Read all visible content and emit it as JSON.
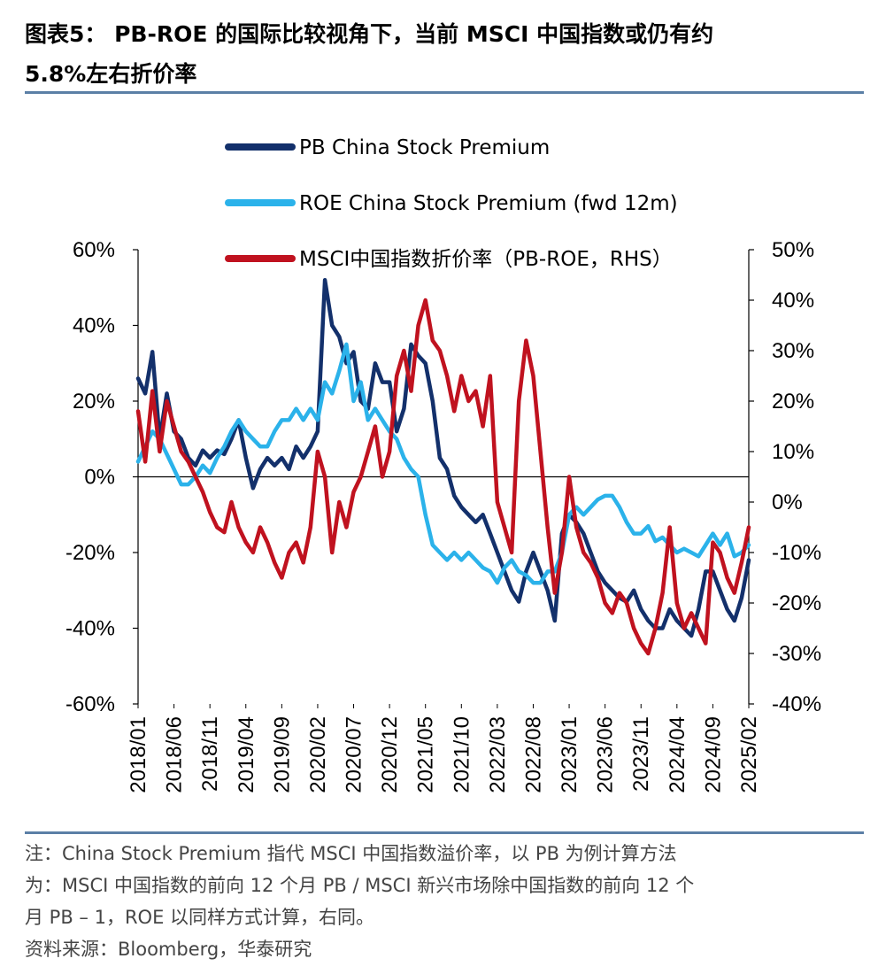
{
  "title": {
    "line1": "图表5： PB-ROE 的国际比较视角下，当前 MSCI 中国指数或仍有约",
    "line2": "5.8%左右折价率"
  },
  "notes": {
    "line1": "注：China Stock Premium 指代 MSCI 中国指数溢价率，以 PB 为例计算方法",
    "line2": "为：MSCI 中国指数的前向 12 个月 PB / MSCI 新兴市场除中国指数的前向 12 个",
    "line3": "月 PB – 1，ROE 以同样方式计算，右同。",
    "source": "资料来源：Bloomberg，华泰研究"
  },
  "chart_data": {
    "type": "line",
    "legend_position": "top-center",
    "left_axis": {
      "range": [
        -0.6,
        0.6
      ],
      "ticks": [
        "60%",
        "40%",
        "20%",
        "0%",
        "-20%",
        "-40%",
        "-60%"
      ]
    },
    "right_axis": {
      "range": [
        -0.4,
        0.5
      ],
      "ticks": [
        "50%",
        "40%",
        "30%",
        "20%",
        "10%",
        "0%",
        "-10%",
        "-20%",
        "-30%",
        "-40%"
      ]
    },
    "x_ticks": [
      "2018/01",
      "2018/06",
      "2018/11",
      "2019/04",
      "2019/09",
      "2020/02",
      "2020/07",
      "2020/12",
      "2021/05",
      "2021/10",
      "2022/03",
      "2022/08",
      "2023/01",
      "2023/06",
      "2023/11",
      "2024/04",
      "2024/09",
      "2025/02"
    ],
    "series": [
      {
        "name": "PB China Stock Premium",
        "axis": "left",
        "color": "#13306b",
        "x": [
          "2018/01",
          "2018/02",
          "2018/03",
          "2018/04",
          "2018/05",
          "2018/06",
          "2018/07",
          "2018/08",
          "2018/09",
          "2018/10",
          "2018/11",
          "2018/12",
          "2019/01",
          "2019/02",
          "2019/03",
          "2019/04",
          "2019/05",
          "2019/06",
          "2019/07",
          "2019/08",
          "2019/09",
          "2019/10",
          "2019/11",
          "2019/12",
          "2020/01",
          "2020/02",
          "2020/03",
          "2020/04",
          "2020/05",
          "2020/06",
          "2020/07",
          "2020/08",
          "2020/09",
          "2020/10",
          "2020/11",
          "2020/12",
          "2021/01",
          "2021/02",
          "2021/03",
          "2021/04",
          "2021/05",
          "2021/06",
          "2021/07",
          "2021/08",
          "2021/09",
          "2021/10",
          "2021/11",
          "2021/12",
          "2022/01",
          "2022/02",
          "2022/03",
          "2022/04",
          "2022/05",
          "2022/06",
          "2022/07",
          "2022/08",
          "2022/09",
          "2022/10",
          "2022/11",
          "2022/12",
          "2023/01",
          "2023/02",
          "2023/03",
          "2023/04",
          "2023/05",
          "2023/06",
          "2023/07",
          "2023/08",
          "2023/09",
          "2023/10",
          "2023/11",
          "2023/12",
          "2024/01",
          "2024/02",
          "2024/03",
          "2024/04",
          "2024/05",
          "2024/06",
          "2024/07",
          "2024/08",
          "2024/09",
          "2024/10",
          "2024/11",
          "2024/12",
          "2025/01",
          "2025/02"
        ],
        "values": [
          0.26,
          0.22,
          0.33,
          0.1,
          0.22,
          0.12,
          0.1,
          0.05,
          0.03,
          0.07,
          0.05,
          0.07,
          0.06,
          0.1,
          0.15,
          0.05,
          -0.03,
          0.02,
          0.05,
          0.03,
          0.05,
          0.02,
          0.08,
          0.05,
          0.08,
          0.12,
          0.52,
          0.4,
          0.37,
          0.3,
          0.33,
          0.2,
          0.18,
          0.3,
          0.25,
          0.25,
          0.12,
          0.18,
          0.35,
          0.32,
          0.3,
          0.2,
          0.05,
          0.02,
          -0.05,
          -0.08,
          -0.1,
          -0.12,
          -0.1,
          -0.15,
          -0.2,
          -0.25,
          -0.3,
          -0.33,
          -0.25,
          -0.2,
          -0.25,
          -0.3,
          -0.38,
          -0.15,
          -0.1,
          -0.12,
          -0.15,
          -0.2,
          -0.25,
          -0.28,
          -0.3,
          -0.32,
          -0.33,
          -0.3,
          -0.35,
          -0.38,
          -0.4,
          -0.4,
          -0.35,
          -0.38,
          -0.4,
          -0.42,
          -0.35,
          -0.25,
          -0.25,
          -0.3,
          -0.35,
          -0.38,
          -0.32,
          -0.22
        ]
      },
      {
        "name": "ROE China Stock Premium (fwd 12m)",
        "axis": "left",
        "color": "#2bb2ea",
        "x": [
          "2018/01",
          "2018/02",
          "2018/03",
          "2018/04",
          "2018/05",
          "2018/06",
          "2018/07",
          "2018/08",
          "2018/09",
          "2018/10",
          "2018/11",
          "2018/12",
          "2019/01",
          "2019/02",
          "2019/03",
          "2019/04",
          "2019/05",
          "2019/06",
          "2019/07",
          "2019/08",
          "2019/09",
          "2019/10",
          "2019/11",
          "2019/12",
          "2020/01",
          "2020/02",
          "2020/03",
          "2020/04",
          "2020/05",
          "2020/06",
          "2020/07",
          "2020/08",
          "2020/09",
          "2020/10",
          "2020/11",
          "2020/12",
          "2021/01",
          "2021/02",
          "2021/03",
          "2021/04",
          "2021/05",
          "2021/06",
          "2021/07",
          "2021/08",
          "2021/09",
          "2021/10",
          "2021/11",
          "2021/12",
          "2022/01",
          "2022/02",
          "2022/03",
          "2022/04",
          "2022/05",
          "2022/06",
          "2022/07",
          "2022/08",
          "2022/09",
          "2022/10",
          "2022/11",
          "2022/12",
          "2023/01",
          "2023/02",
          "2023/03",
          "2023/04",
          "2023/05",
          "2023/06",
          "2023/07",
          "2023/08",
          "2023/09",
          "2023/10",
          "2023/11",
          "2023/12",
          "2024/01",
          "2024/02",
          "2024/03",
          "2024/04",
          "2024/05",
          "2024/06",
          "2024/07",
          "2024/08",
          "2024/09",
          "2024/10",
          "2024/11",
          "2024/12",
          "2025/01",
          "2025/02"
        ],
        "values": [
          0.04,
          0.08,
          0.12,
          0.1,
          0.06,
          0.02,
          -0.02,
          -0.02,
          0.0,
          0.03,
          0.01,
          0.05,
          0.08,
          0.12,
          0.15,
          0.12,
          0.1,
          0.08,
          0.08,
          0.12,
          0.15,
          0.15,
          0.18,
          0.15,
          0.18,
          0.15,
          0.25,
          0.22,
          0.28,
          0.35,
          0.2,
          0.25,
          0.15,
          0.18,
          0.15,
          0.12,
          0.1,
          0.05,
          0.02,
          0.0,
          -0.1,
          -0.18,
          -0.2,
          -0.22,
          -0.2,
          -0.22,
          -0.2,
          -0.22,
          -0.24,
          -0.25,
          -0.28,
          -0.24,
          -0.22,
          -0.25,
          -0.26,
          -0.28,
          -0.28,
          -0.25,
          -0.25,
          -0.2,
          -0.1,
          -0.08,
          -0.1,
          -0.08,
          -0.06,
          -0.05,
          -0.05,
          -0.08,
          -0.12,
          -0.15,
          -0.15,
          -0.13,
          -0.17,
          -0.16,
          -0.18,
          -0.2,
          -0.19,
          -0.2,
          -0.21,
          -0.18,
          -0.15,
          -0.18,
          -0.15,
          -0.21,
          -0.2,
          -0.18
        ]
      },
      {
        "name": "MSCI中国指数折价率（PB-ROE，RHS）",
        "axis": "right",
        "color": "#c0121f",
        "x": [
          "2018/01",
          "2018/02",
          "2018/03",
          "2018/04",
          "2018/05",
          "2018/06",
          "2018/07",
          "2018/08",
          "2018/09",
          "2018/10",
          "2018/11",
          "2018/12",
          "2019/01",
          "2019/02",
          "2019/03",
          "2019/04",
          "2019/05",
          "2019/06",
          "2019/07",
          "2019/08",
          "2019/09",
          "2019/10",
          "2019/11",
          "2019/12",
          "2020/01",
          "2020/02",
          "2020/03",
          "2020/04",
          "2020/05",
          "2020/06",
          "2020/07",
          "2020/08",
          "2020/09",
          "2020/10",
          "2020/11",
          "2020/12",
          "2021/01",
          "2021/02",
          "2021/03",
          "2021/04",
          "2021/05",
          "2021/06",
          "2021/07",
          "2021/08",
          "2021/09",
          "2021/10",
          "2021/11",
          "2021/12",
          "2022/01",
          "2022/02",
          "2022/03",
          "2022/04",
          "2022/05",
          "2022/06",
          "2022/07",
          "2022/08",
          "2022/09",
          "2022/10",
          "2022/11",
          "2022/12",
          "2023/01",
          "2023/02",
          "2023/03",
          "2023/04",
          "2023/05",
          "2023/06",
          "2023/07",
          "2023/08",
          "2023/09",
          "2023/10",
          "2023/11",
          "2023/12",
          "2024/01",
          "2024/02",
          "2024/03",
          "2024/04",
          "2024/05",
          "2024/06",
          "2024/07",
          "2024/08",
          "2024/09",
          "2024/10",
          "2024/11",
          "2024/12",
          "2025/01",
          "2025/02"
        ],
        "values": [
          0.18,
          0.08,
          0.22,
          0.1,
          0.2,
          0.15,
          0.1,
          0.08,
          0.05,
          0.02,
          -0.02,
          -0.05,
          -0.06,
          0.0,
          -0.05,
          -0.08,
          -0.1,
          -0.05,
          -0.08,
          -0.12,
          -0.15,
          -0.1,
          -0.08,
          -0.12,
          -0.05,
          0.1,
          0.05,
          -0.1,
          0.0,
          -0.05,
          0.02,
          0.05,
          0.1,
          0.15,
          0.05,
          0.1,
          0.25,
          0.3,
          0.22,
          0.35,
          0.4,
          0.32,
          0.3,
          0.25,
          0.18,
          0.25,
          0.2,
          0.22,
          0.15,
          0.25,
          0.0,
          -0.05,
          -0.1,
          0.2,
          0.32,
          0.25,
          0.1,
          -0.05,
          -0.18,
          -0.1,
          0.05,
          -0.05,
          -0.1,
          -0.12,
          -0.15,
          -0.2,
          -0.22,
          -0.18,
          -0.2,
          -0.25,
          -0.28,
          -0.3,
          -0.25,
          -0.18,
          -0.05,
          -0.2,
          -0.25,
          -0.22,
          -0.25,
          -0.28,
          -0.08,
          -0.1,
          -0.15,
          -0.18,
          -0.12,
          -0.05
        ]
      }
    ]
  }
}
